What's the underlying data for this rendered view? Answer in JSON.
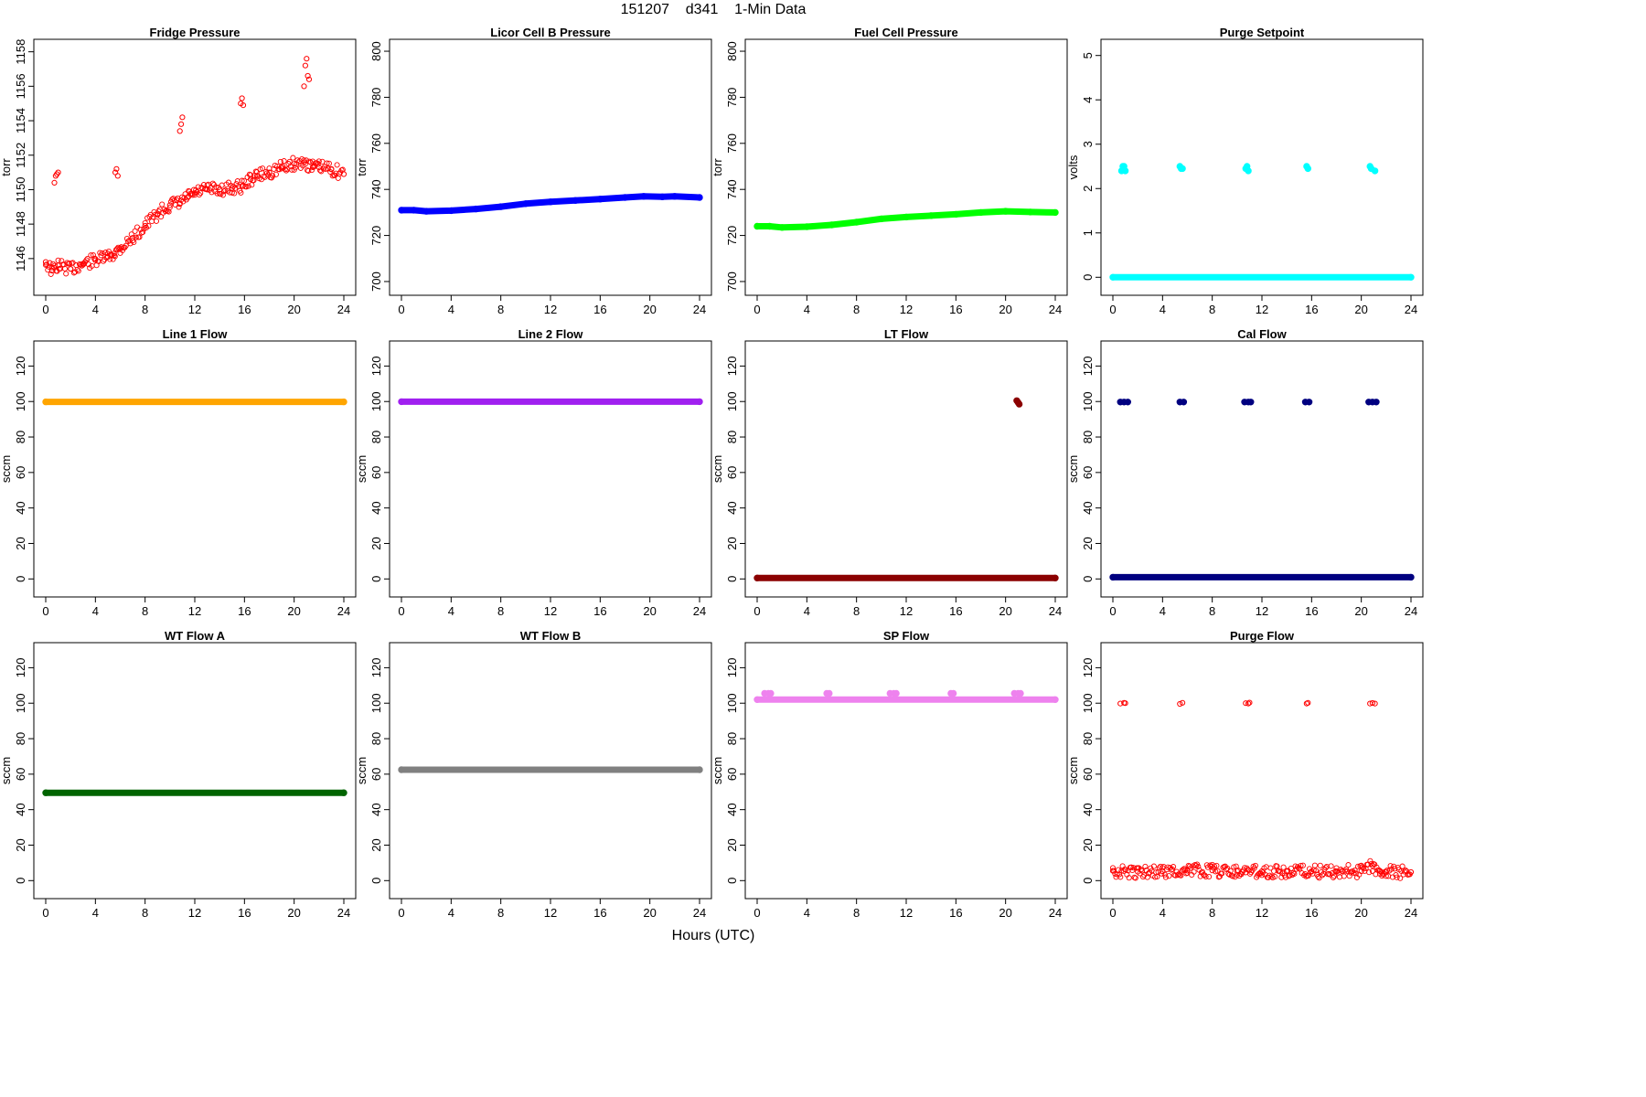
{
  "figure": {
    "title": "151207    d341    1-Min Data",
    "x_axis_label": "Hours (UTC)"
  },
  "chart_data": [
    {
      "type": "scatter",
      "title": "Fridge Pressure",
      "xlabel": "",
      "ylabel": "torr",
      "color": "#ff0000",
      "marker": "open-circle",
      "xlim": [
        0,
        24
      ],
      "xticks": [
        0,
        4,
        8,
        12,
        16,
        20,
        24
      ],
      "ylim": [
        1144.4,
        1158.3
      ],
      "yticks": [
        1146,
        1148,
        1150,
        1152,
        1154,
        1156,
        1158
      ],
      "series": [
        {
          "x": [
            0,
            0.5,
            1,
            2,
            3,
            4,
            5,
            5.5,
            6,
            7,
            8,
            9,
            10,
            10.8,
            11.5,
            12,
            13,
            14,
            15,
            15.8,
            16.5,
            17,
            18,
            19,
            20,
            20.8,
            21.5,
            22,
            23,
            24
          ],
          "y": [
            1145.8,
            1145.3,
            1145.6,
            1145.4,
            1145.7,
            1145.9,
            1146.1,
            1146.3,
            1146.6,
            1147.2,
            1147.9,
            1148.6,
            1149.1,
            1149.2,
            1149.6,
            1149.8,
            1150.0,
            1150.0,
            1150.1,
            1150.2,
            1150.6,
            1150.8,
            1151.0,
            1151.3,
            1151.5,
            1151.6,
            1151.3,
            1151.3,
            1151.2,
            1150.9
          ]
        },
        {
          "x": [
            0.7,
            0.8,
            0.9,
            1.0,
            5.6,
            5.7,
            5.8,
            10.8,
            10.9,
            11.0,
            15.7,
            15.8,
            15.9,
            20.8,
            20.9,
            21.0,
            21.1,
            21.2
          ],
          "y": [
            1150.4,
            1150.8,
            1150.9,
            1151.0,
            1151.0,
            1151.2,
            1150.8,
            1153.4,
            1153.8,
            1154.2,
            1155.0,
            1155.3,
            1154.9,
            1156.0,
            1157.2,
            1157.6,
            1156.6,
            1156.4
          ]
        }
      ]
    },
    {
      "type": "scatter",
      "title": "Licor Cell B Pressure",
      "xlabel": "",
      "ylabel": "torr",
      "color": "#0000ff",
      "marker": "filled-band",
      "xlim": [
        0,
        24
      ],
      "xticks": [
        0,
        4,
        8,
        12,
        16,
        20,
        24
      ],
      "ylim": [
        698,
        802
      ],
      "yticks": [
        700,
        720,
        740,
        760,
        780,
        800
      ],
      "series": [
        {
          "x": [
            0,
            1,
            2,
            4,
            6,
            8,
            10,
            12,
            14,
            16,
            18,
            19.5,
            21,
            22,
            24
          ],
          "y": [
            731,
            731,
            730.5,
            730.8,
            731.5,
            732.5,
            733.8,
            734.6,
            735.2,
            735.8,
            736.5,
            737,
            736.8,
            737,
            736.5
          ]
        }
      ]
    },
    {
      "type": "scatter",
      "title": "Fuel Cell Pressure",
      "xlabel": "",
      "ylabel": "torr",
      "color": "#00ff00",
      "marker": "filled-band",
      "xlim": [
        0,
        24
      ],
      "xticks": [
        0,
        4,
        8,
        12,
        16,
        20,
        24
      ],
      "ylim": [
        698,
        802
      ],
      "yticks": [
        700,
        720,
        740,
        760,
        780,
        800
      ],
      "series": [
        {
          "x": [
            0,
            1,
            2,
            4,
            6,
            8,
            10,
            12,
            14,
            16,
            18,
            20,
            22,
            24
          ],
          "y": [
            724,
            724,
            723.5,
            723.8,
            724.6,
            725.8,
            727.2,
            728,
            728.6,
            729.2,
            730,
            730.5,
            730.2,
            730
          ]
        }
      ]
    },
    {
      "type": "scatter",
      "title": "Purge Setpoint",
      "xlabel": "",
      "ylabel": "volts",
      "color": "#00ffff",
      "marker": "filled-band",
      "xlim": [
        0,
        24
      ],
      "xticks": [
        0,
        4,
        8,
        12,
        16,
        20,
        24
      ],
      "ylim": [
        -0.2,
        5.2
      ],
      "yticks": [
        0,
        1,
        2,
        3,
        4,
        5
      ],
      "series": [
        {
          "x": [
            0,
            24
          ],
          "y": [
            0,
            0
          ]
        },
        {
          "x": [
            0.7,
            0.8,
            0.9,
            1.0,
            5.4,
            5.5,
            5.6,
            10.7,
            10.8,
            10.9,
            15.6,
            15.7,
            20.7,
            20.8,
            21.1
          ],
          "y": [
            2.4,
            2.5,
            2.5,
            2.4,
            2.5,
            2.45,
            2.45,
            2.45,
            2.5,
            2.4,
            2.5,
            2.45,
            2.5,
            2.45,
            2.4
          ]
        }
      ]
    },
    {
      "type": "scatter",
      "title": "Line 1 Flow",
      "xlabel": "",
      "ylabel": "sccm",
      "color": "#ffa500",
      "marker": "filled-band",
      "xlim": [
        0,
        24
      ],
      "xticks": [
        0,
        4,
        8,
        12,
        16,
        20,
        24
      ],
      "ylim": [
        -5,
        130
      ],
      "yticks": [
        0,
        20,
        40,
        60,
        80,
        100,
        120
      ],
      "series": [
        {
          "x": [
            0,
            24
          ],
          "y": [
            99.8,
            99.8
          ]
        }
      ]
    },
    {
      "type": "scatter",
      "title": "Line 2 Flow",
      "xlabel": "",
      "ylabel": "sccm",
      "color": "#a020f0",
      "marker": "filled-band",
      "xlim": [
        0,
        24
      ],
      "xticks": [
        0,
        4,
        8,
        12,
        16,
        20,
        24
      ],
      "ylim": [
        -5,
        130
      ],
      "yticks": [
        0,
        20,
        40,
        60,
        80,
        100,
        120
      ],
      "series": [
        {
          "x": [
            0,
            24
          ],
          "y": [
            99.9,
            99.9
          ]
        }
      ]
    },
    {
      "type": "scatter",
      "title": "LT Flow",
      "xlabel": "",
      "ylabel": "sccm",
      "color": "#8b0000",
      "marker": "filled-band",
      "xlim": [
        0,
        24
      ],
      "xticks": [
        0,
        4,
        8,
        12,
        16,
        20,
        24
      ],
      "ylim": [
        -5,
        130
      ],
      "yticks": [
        0,
        20,
        40,
        60,
        80,
        100,
        120
      ],
      "series": [
        {
          "x": [
            0,
            24
          ],
          "y": [
            0.5,
            0.5
          ]
        },
        {
          "x": [
            20.9,
            21.0,
            21.1
          ],
          "y": [
            100.5,
            99.5,
            98.5
          ]
        }
      ]
    },
    {
      "type": "scatter",
      "title": "Cal Flow",
      "xlabel": "",
      "ylabel": "sccm",
      "color": "#000080",
      "marker": "filled-band",
      "xlim": [
        0,
        24
      ],
      "xticks": [
        0,
        4,
        8,
        12,
        16,
        20,
        24
      ],
      "ylim": [
        -5,
        130
      ],
      "yticks": [
        0,
        20,
        40,
        60,
        80,
        100,
        120
      ],
      "series": [
        {
          "x": [
            0,
            24
          ],
          "y": [
            1,
            1
          ]
        },
        {
          "x": [
            0.6,
            0.9,
            1.2,
            5.4,
            5.7,
            10.6,
            10.9,
            11.1,
            15.5,
            15.8,
            20.6,
            20.9,
            21.2
          ],
          "y": [
            99.7,
            99.7,
            99.7,
            99.7,
            99.7,
            99.7,
            99.7,
            99.7,
            99.7,
            99.7,
            99.7,
            99.7,
            99.7
          ]
        }
      ]
    },
    {
      "type": "scatter",
      "title": "WT Flow A",
      "xlabel": "",
      "ylabel": "sccm",
      "color": "#006400",
      "marker": "filled-band",
      "xlim": [
        0,
        24
      ],
      "xticks": [
        0,
        4,
        8,
        12,
        16,
        20,
        24
      ],
      "ylim": [
        -5,
        130
      ],
      "yticks": [
        0,
        20,
        40,
        60,
        80,
        100,
        120
      ],
      "series": [
        {
          "x": [
            0,
            24
          ],
          "y": [
            49.5,
            49.5
          ]
        }
      ]
    },
    {
      "type": "scatter",
      "title": "WT Flow B",
      "xlabel": "",
      "ylabel": "sccm",
      "color": "#808080",
      "marker": "filled-band",
      "xlim": [
        0,
        24
      ],
      "xticks": [
        0,
        4,
        8,
        12,
        16,
        20,
        24
      ],
      "ylim": [
        -5,
        130
      ],
      "yticks": [
        0,
        20,
        40,
        60,
        80,
        100,
        120
      ],
      "series": [
        {
          "x": [
            0,
            24
          ],
          "y": [
            62.5,
            62.5
          ]
        }
      ]
    },
    {
      "type": "scatter",
      "title": "SP Flow",
      "xlabel": "",
      "ylabel": "sccm",
      "color": "#ee82ee",
      "marker": "filled-band",
      "xlim": [
        0,
        24
      ],
      "xticks": [
        0,
        4,
        8,
        12,
        16,
        20,
        24
      ],
      "ylim": [
        -5,
        130
      ],
      "yticks": [
        0,
        20,
        40,
        60,
        80,
        100,
        120
      ],
      "series": [
        {
          "x": [
            0,
            24
          ],
          "y": [
            102,
            102
          ]
        },
        {
          "x": [
            0.6,
            0.9,
            1.1,
            5.6,
            5.8,
            10.7,
            11.0,
            11.2,
            15.6,
            15.8,
            20.7,
            21.0,
            21.2
          ],
          "y": [
            105.5,
            105.5,
            105.5,
            105.5,
            105.5,
            105.5,
            105.5,
            105.5,
            105.5,
            105.5,
            105.5,
            105.5,
            105.5
          ]
        }
      ]
    },
    {
      "type": "scatter",
      "title": "Purge Flow",
      "xlabel": "",
      "ylabel": "sccm",
      "color": "#ff0000",
      "marker": "open-circle",
      "xlim": [
        0,
        24
      ],
      "xticks": [
        0,
        4,
        8,
        12,
        16,
        20,
        24
      ],
      "ylim": [
        -5,
        130
      ],
      "yticks": [
        0,
        20,
        40,
        60,
        80,
        100,
        120
      ],
      "series": [
        {
          "x": [
            0,
            2,
            4,
            6,
            8,
            10,
            12,
            14,
            16,
            18,
            20,
            20.9,
            21.5,
            22,
            24
          ],
          "y": [
            5.5,
            5,
            5.3,
            5.6,
            5.7,
            5.4,
            5.3,
            5.2,
            5.1,
            5.2,
            5.3,
            8.5,
            5.5,
            5,
            4.8
          ]
        },
        {
          "x": [
            0.6,
            0.9,
            1.0,
            5.4,
            5.6,
            10.7,
            10.9,
            11.0,
            15.6,
            15.7,
            20.7,
            20.9,
            21.1
          ],
          "y": [
            99.8,
            100.2,
            100,
            99.6,
            100.2,
            100,
            99.8,
            100.3,
            99.8,
            100.2,
            99.8,
            100.1,
            99.8
          ]
        }
      ]
    }
  ]
}
